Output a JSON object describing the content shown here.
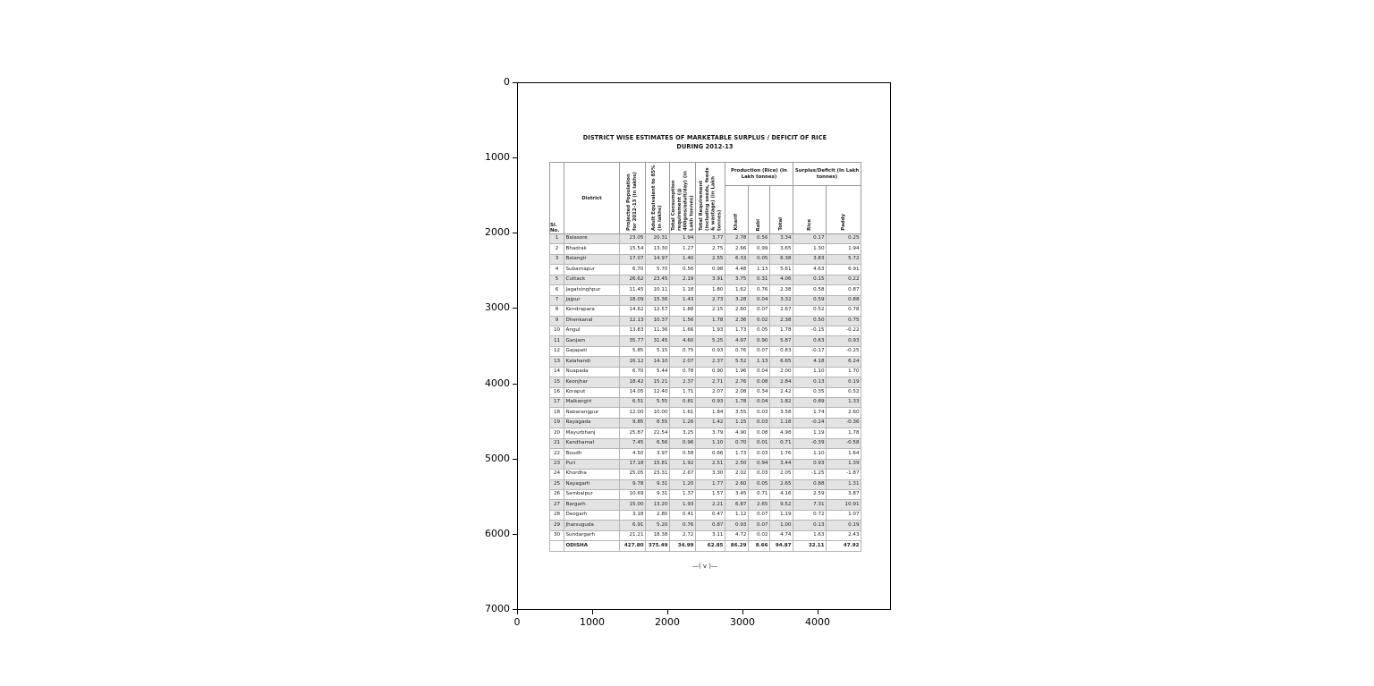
{
  "fig": {
    "y_ticks": [
      "0",
      "1000",
      "2000",
      "3000",
      "4000",
      "5000",
      "6000",
      "7000"
    ],
    "x_ticks": [
      "0",
      "1000",
      "2000",
      "3000",
      "4000"
    ],
    "footer_mark": "—( v )—"
  },
  "doc": {
    "title_line1": "DISTRICT WISE ESTIMATES OF MARKETABLE SURPLUS / DEFICIT OF RICE",
    "title_line2": "DURING 2012-13",
    "table": {
      "col_headers": {
        "sl_no": "Sl. No.",
        "district": "District",
        "population": "Projected Population for 2012-13 (in lakhs)",
        "adult": "Adult Equivalent to 85% (in lakhs)",
        "consumption": "Total Consumption requirement (@ 400gms/adult/day) (in Lakh tonnes)",
        "requirement": "Total Requirement (including seeds, feeds & wastage) (in Lakh tonnes)",
        "production_group": "Production (Rice) (In Lakh tonnes)",
        "kharif": "Kharif",
        "rabi": "Rabi",
        "total": "Total",
        "surplus_group": "Surplus/Deficit (In Lakh tonnes)",
        "rice": "Rice",
        "paddy": "Paddy"
      },
      "rows": [
        [
          "1",
          "Balasore",
          "23.05",
          "20.31",
          "1.94",
          "3.77",
          "2.78",
          "0.56",
          "3.34",
          "0.17",
          "0.25"
        ],
        [
          "2",
          "Bhadrak",
          "15.54",
          "13.30",
          "1.27",
          "2.75",
          "2.66",
          "0.99",
          "3.65",
          "1.30",
          "1.94"
        ],
        [
          "3",
          "Balangir",
          "17.07",
          "14.97",
          "1.40",
          "2.55",
          "6.33",
          "0.05",
          "6.38",
          "3.83",
          "5.72"
        ],
        [
          "4",
          "Subarnapur",
          "6.70",
          "5.70",
          "0.56",
          "0.98",
          "4.48",
          "1.13",
          "5.61",
          "4.63",
          "6.91"
        ],
        [
          "5",
          "Cuttack",
          "26.62",
          "23.45",
          "2.19",
          "3.91",
          "3.75",
          "0.31",
          "4.06",
          "0.15",
          "0.22"
        ],
        [
          "6",
          "Jagatsinghpur",
          "11.45",
          "10.11",
          "1.18",
          "1.80",
          "1.62",
          "0.76",
          "2.38",
          "0.58",
          "0.87"
        ],
        [
          "7",
          "Jajpur",
          "18.09",
          "15.36",
          "1.43",
          "2.73",
          "3.28",
          "0.04",
          "3.32",
          "0.59",
          "0.88"
        ],
        [
          "8",
          "Kendrapara",
          "14.62",
          "12.57",
          "1.88",
          "2.15",
          "2.60",
          "0.07",
          "2.67",
          "0.52",
          "0.78"
        ],
        [
          "9",
          "Dhenkanal",
          "12.13",
          "10.37",
          "1.56",
          "1.78",
          "2.36",
          "0.02",
          "2.38",
          "0.50",
          "0.75"
        ],
        [
          "10",
          "Angul",
          "13.83",
          "11.36",
          "1.66",
          "1.93",
          "1.73",
          "0.05",
          "1.78",
          "-0.15",
          "-0.22"
        ],
        [
          "11",
          "Ganjam",
          "35.77",
          "31.45",
          "4.60",
          "5.25",
          "4.97",
          "0.90",
          "5.87",
          "0.63",
          "0.93"
        ],
        [
          "12",
          "Gajapati",
          "5.85",
          "5.15",
          "0.75",
          "0.93",
          "0.76",
          "0.07",
          "0.83",
          "-0.17",
          "-0.25"
        ],
        [
          "13",
          "Kalahandi",
          "16.12",
          "14.10",
          "2.07",
          "2.37",
          "5.52",
          "1.13",
          "6.65",
          "4.18",
          "6.24"
        ],
        [
          "14",
          "Nuapada",
          "6.70",
          "5.44",
          "0.78",
          "0.90",
          "1.96",
          "0.04",
          "2.00",
          "1.10",
          "1.70"
        ],
        [
          "15",
          "Keonjhar",
          "18.42",
          "15.21",
          "2.37",
          "2.71",
          "2.76",
          "0.08",
          "2.84",
          "0.13",
          "0.19"
        ],
        [
          "16",
          "Koraput",
          "14.05",
          "12.40",
          "1.71",
          "2.07",
          "2.08",
          "0.34",
          "2.42",
          "0.35",
          "0.52"
        ],
        [
          "17",
          "Malkangiri",
          "6.51",
          "5.55",
          "0.81",
          "0.93",
          "1.78",
          "0.04",
          "1.82",
          "0.89",
          "1.33"
        ],
        [
          "18",
          "Nabarangpur",
          "12.00",
          "10.00",
          "1.61",
          "1.84",
          "3.55",
          "0.03",
          "3.58",
          "1.74",
          "2.60"
        ],
        [
          "19",
          "Rayagada",
          "9.85",
          "8.55",
          "1.26",
          "1.42",
          "1.15",
          "0.03",
          "1.18",
          "-0.24",
          "-0.36"
        ],
        [
          "20",
          "Mayurbhanj",
          "25.87",
          "22.54",
          "3.25",
          "3.79",
          "4.90",
          "0.08",
          "4.98",
          "1.19",
          "1.78"
        ],
        [
          "21",
          "Kandhamal",
          "7.45",
          "6.56",
          "0.96",
          "1.10",
          "0.70",
          "0.01",
          "0.71",
          "-0.39",
          "-0.58"
        ],
        [
          "22",
          "Boudh",
          "4.50",
          "3.97",
          "0.58",
          "0.66",
          "1.73",
          "0.03",
          "1.76",
          "1.10",
          "1.64"
        ],
        [
          "23",
          "Puri",
          "17.18",
          "15.81",
          "1.92",
          "2.51",
          "2.50",
          "0.94",
          "3.44",
          "0.93",
          "1.39"
        ],
        [
          "24",
          "Khordha",
          "25.05",
          "23.31",
          "2.67",
          "3.30",
          "2.02",
          "0.03",
          "2.05",
          "-1.25",
          "-1.87"
        ],
        [
          "25",
          "Nayagarh",
          "9.78",
          "9.31",
          "1.20",
          "1.77",
          "2.60",
          "0.05",
          "2.65",
          "0.88",
          "1.31"
        ],
        [
          "26",
          "Sambalpur",
          "10.69",
          "9.31",
          "1.37",
          "1.57",
          "3.45",
          "0.71",
          "4.16",
          "2.59",
          "3.87"
        ],
        [
          "27",
          "Bargarh",
          "15.00",
          "13.20",
          "1.93",
          "2.21",
          "6.87",
          "2.65",
          "9.52",
          "7.31",
          "10.91"
        ],
        [
          "28",
          "Deogarh",
          "3.18",
          "2.80",
          "0.41",
          "0.47",
          "1.12",
          "0.07",
          "1.19",
          "0.72",
          "1.07"
        ],
        [
          "29",
          "Jharsuguda",
          "6.91",
          "5.20",
          "0.76",
          "0.87",
          "0.93",
          "0.07",
          "1.00",
          "0.13",
          "0.19"
        ],
        [
          "30",
          "Sundargarh",
          "21.21",
          "18.38",
          "2.72",
          "3.11",
          "4.72",
          "0.02",
          "4.74",
          "1.63",
          "2.43"
        ]
      ],
      "total_row": [
        "",
        "ODISHA",
        "427.80",
        "375.49",
        "34.99",
        "62.85",
        "86.29",
        "8.66",
        "94.87",
        "32.11",
        "47.92"
      ]
    }
  },
  "colors": {
    "table_border": "#c43a3a",
    "row_stripe": "#e3e3e3"
  }
}
